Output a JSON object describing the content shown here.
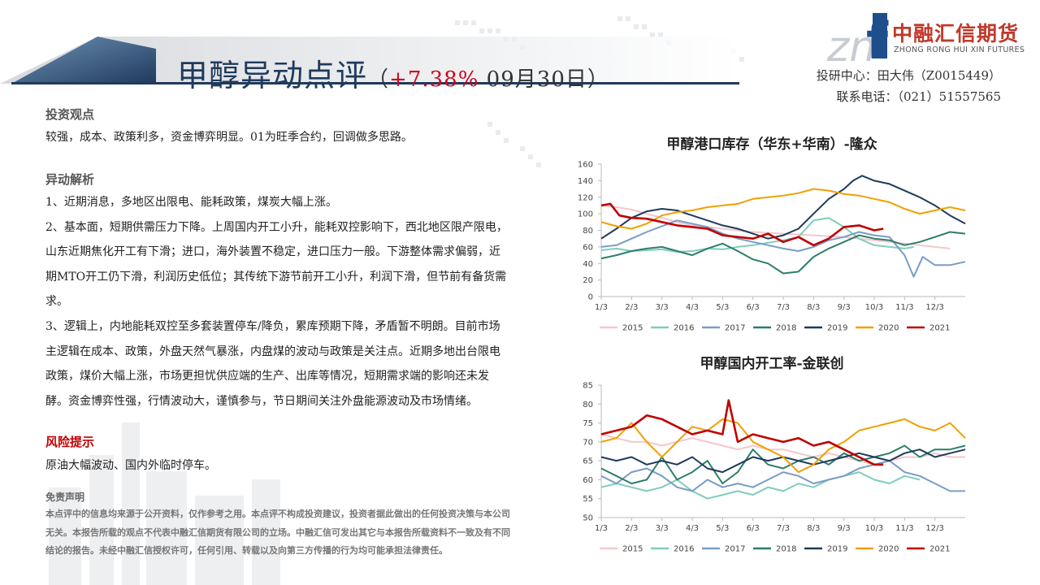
{
  "header": {
    "title": "甲醇异动点评",
    "paren_open": "（",
    "change_pct": "+7.38%",
    "date": " 09月30日",
    "paren_close": "）",
    "contact_center": "投研中心：田大伟（Z0015449）",
    "contact_phone": "联系电话：（021）51557565"
  },
  "logo": {
    "watermark": "zn",
    "letter": "f",
    "cn": "中融汇信期货",
    "en": "ZHONG RONG HUI XIN FUTURES"
  },
  "colors": {
    "title": "#1f3a5c",
    "accent": "#d0021b",
    "logo_blue": "#1f4e8c",
    "logo_red": "#c0392b"
  },
  "sections": {
    "view_heading": "投资观点",
    "view_text": "较强，成本、政策利多，资金博弈明显。01为旺季合约，回调做多思路。",
    "analysis_heading": "异动解析",
    "analysis_text": "1、近期消息，多地区出限电、能耗政策，煤炭大幅上涨。\n2、基本面，短期供需压力下降。上周国内开工小升，能耗双控影响下，西北地区限产限电，山东近期焦化开工有下滑；进口，海外装置不稳定，进口压力一般。下游整体需求偏弱，近期MTO开工仍下滑，利润历史低位；其传统下游节前开工小升，利润下滑，但节前有备货需求。\n3、逻辑上，内地能耗双控至多套装置停车/降负，累库预期下降，矛盾暂不明朗。目前市场主逻辑在成本、政策，外盘天然气暴涨，内盘煤的波动与政策是关注点。近期多地出台限电政策，煤价大幅上涨，市场更担忧供应端的生产、出库等情况，短期需求端的影响还未发酵。资金博弈性强，行情波动大，谨慎参与，节日期间关注外盘能源波动及市场情绪。",
    "risk_heading": "风险提示",
    "risk_text": "原油大幅波动、国内外临时停车。",
    "disclaimer_heading": "免责声明",
    "disclaimer_text": "本点评中的信息均来源于公开资料，仅作参考之用。本点评不构成投资建议，投资者据此做出的任何投资决策与本公司无关。本报告所载的观点不代表中融汇信期货有限公司的立场。中融汇信可发出其它与本报告所载资料不一致及有不同结论的报告。未经中融汇信授权许可，任何引用、转载以及向第三方传播的行为均可能承担法律责任。"
  },
  "chart_data": [
    {
      "type": "line",
      "title": "甲醇港口库存（华东+华南）-隆众",
      "x_ticks": [
        "1/3",
        "2/3",
        "3/3",
        "4/3",
        "5/3",
        "6/3",
        "7/3",
        "8/3",
        "9/3",
        "10/3",
        "11/3",
        "12/3"
      ],
      "ylim": [
        0,
        160
      ],
      "y_ticks": [
        0,
        20,
        40,
        60,
        80,
        100,
        120,
        140,
        160
      ],
      "grid": false,
      "legend_position": "bottom",
      "series": [
        {
          "name": "2015",
          "color": "#f4c7cc",
          "x": [
            1,
            1.5,
            2,
            2.5,
            3,
            3.5,
            4,
            4.5,
            5,
            5.5,
            6,
            6.5,
            7,
            7.5,
            8,
            8.5,
            9,
            9.5,
            10,
            10.5,
            11,
            11.5,
            12,
            12.5
          ],
          "values": [
            110,
            108,
            105,
            100,
            95,
            90,
            86,
            84,
            82,
            80,
            78,
            77,
            76,
            75,
            74,
            73,
            72,
            70,
            68,
            66,
            64,
            62,
            60,
            58
          ]
        },
        {
          "name": "2016",
          "color": "#7fcdbb",
          "x": [
            1,
            1.5,
            2,
            2.5,
            3,
            3.5,
            4,
            4.5,
            5,
            5.5,
            6,
            6.5,
            7,
            7.5,
            8,
            8.5,
            9,
            9.5,
            10,
            10.5,
            11,
            11.3
          ],
          "values": [
            56,
            58,
            55,
            56,
            57,
            54,
            55,
            58,
            57,
            60,
            62,
            65,
            68,
            72,
            92,
            95,
            84,
            70,
            62,
            60,
            58,
            60
          ]
        },
        {
          "name": "2017",
          "color": "#7a9cc6",
          "x": [
            1,
            1.5,
            2,
            2.5,
            3,
            3.5,
            4,
            4.5,
            5,
            5.5,
            6,
            6.5,
            7,
            7.5,
            8,
            8.5,
            9,
            9.5,
            10,
            10.5,
            11,
            11.3,
            11.6,
            12,
            12.5,
            13
          ],
          "values": [
            60,
            62,
            70,
            78,
            85,
            92,
            88,
            84,
            76,
            70,
            66,
            62,
            58,
            55,
            60,
            68,
            72,
            78,
            74,
            72,
            50,
            24,
            48,
            38,
            38,
            42
          ]
        },
        {
          "name": "2018",
          "color": "#2e7d6b",
          "x": [
            1,
            1.5,
            2,
            2.5,
            3,
            3.5,
            4,
            4.5,
            5,
            5.5,
            6,
            6.5,
            7,
            7.5,
            8,
            8.5,
            9,
            9.5,
            10,
            10.5,
            11,
            11.5,
            12,
            12.5,
            13
          ],
          "values": [
            46,
            50,
            55,
            58,
            60,
            55,
            50,
            58,
            64,
            55,
            45,
            40,
            28,
            30,
            48,
            58,
            66,
            74,
            70,
            68,
            62,
            66,
            72,
            78,
            76
          ]
        },
        {
          "name": "2019",
          "color": "#1f3a5c",
          "x": [
            1,
            1.5,
            2,
            2.5,
            3,
            3.5,
            4,
            4.5,
            5,
            5.5,
            6,
            6.5,
            7,
            7.5,
            8,
            8.5,
            9,
            9.3,
            9.6,
            10,
            10.5,
            11,
            11.5,
            12,
            12.5,
            13
          ],
          "values": [
            70,
            82,
            95,
            103,
            106,
            104,
            98,
            92,
            86,
            82,
            76,
            70,
            74,
            82,
            100,
            118,
            130,
            140,
            146,
            140,
            136,
            128,
            120,
            110,
            98,
            88
          ]
        },
        {
          "name": "2020",
          "color": "#f0a000",
          "x": [
            1,
            1.5,
            2,
            2.5,
            3,
            3.5,
            4,
            4.5,
            5,
            5.5,
            6,
            6.5,
            7,
            7.5,
            8,
            8.5,
            9,
            9.5,
            10,
            10.5,
            11,
            11.5,
            12,
            12.5,
            13
          ],
          "values": [
            90,
            85,
            82,
            88,
            98,
            102,
            104,
            108,
            110,
            112,
            118,
            120,
            122,
            125,
            130,
            128,
            124,
            122,
            118,
            114,
            106,
            100,
            104,
            108,
            104
          ]
        },
        {
          "name": "2021",
          "color": "#c00000",
          "x": [
            1,
            1.3,
            1.6,
            2,
            2.5,
            3,
            3.5,
            4,
            4.5,
            5,
            5.5,
            6,
            6.5,
            7,
            7.5,
            8,
            8.5,
            9,
            9.5,
            10,
            10.3
          ],
          "values": [
            110,
            112,
            98,
            95,
            94,
            90,
            86,
            84,
            82,
            74,
            72,
            70,
            76,
            66,
            72,
            62,
            70,
            84,
            86,
            80,
            82
          ]
        }
      ]
    },
    {
      "type": "line",
      "title": "甲醇国内开工率-金联创",
      "x_ticks": [
        "1/3",
        "2/3",
        "3/3",
        "4/3",
        "5/3",
        "6/3",
        "7/3",
        "8/3",
        "9/3",
        "10/3",
        "11/3",
        "12/3"
      ],
      "ylim": [
        50,
        85
      ],
      "y_ticks": [
        50,
        55,
        60,
        65,
        70,
        75,
        80,
        85
      ],
      "grid": false,
      "legend_position": "bottom",
      "series": [
        {
          "name": "2015",
          "color": "#f4c7cc",
          "x": [
            1,
            1.5,
            2,
            2.5,
            3,
            3.5,
            4,
            4.5,
            5,
            5.5,
            6,
            6.5,
            7,
            7.5,
            8,
            8.5,
            9,
            9.5,
            10,
            10.5,
            11,
            11.5,
            12,
            12.5,
            13
          ],
          "values": [
            72,
            71,
            70,
            70,
            69,
            70,
            71,
            70,
            69,
            68,
            69,
            68,
            68,
            67,
            66,
            67,
            66,
            65,
            64,
            65,
            66,
            66,
            67,
            66,
            66
          ]
        },
        {
          "name": "2016",
          "color": "#7fcdbb",
          "x": [
            1,
            1.5,
            2,
            2.5,
            3,
            3.5,
            4,
            4.5,
            5,
            5.5,
            6,
            6.5,
            7,
            7.5,
            8,
            8.5,
            9,
            9.5,
            10,
            10.5,
            11,
            11.5
          ],
          "values": [
            58,
            59,
            58,
            57,
            58,
            60,
            57,
            55,
            56,
            57,
            56,
            58,
            57,
            59,
            58,
            60,
            61,
            62,
            60,
            59,
            61,
            60
          ]
        },
        {
          "name": "2017",
          "color": "#7a9cc6",
          "x": [
            1,
            1.5,
            2,
            2.5,
            3,
            3.5,
            4,
            4.5,
            5,
            5.5,
            6,
            6.5,
            7,
            7.5,
            8,
            8.5,
            9,
            9.5,
            10,
            10.5,
            11,
            11.5,
            12,
            12.5,
            13
          ],
          "values": [
            61,
            59,
            62,
            63,
            61,
            58,
            57,
            60,
            58,
            59,
            58,
            60,
            62,
            61,
            59,
            60,
            61,
            63,
            64,
            65,
            62,
            61,
            59,
            57,
            57
          ]
        },
        {
          "name": "2018",
          "color": "#2e7d6b",
          "x": [
            1,
            1.5,
            2,
            2.5,
            3,
            3.5,
            4,
            4.5,
            5,
            5.5,
            6,
            6.5,
            7,
            7.5,
            8,
            8.5,
            9,
            9.5,
            10,
            10.5,
            11,
            11.5,
            12,
            12.5,
            13
          ],
          "values": [
            63,
            61,
            59,
            60,
            66,
            60,
            62,
            65,
            59,
            62,
            68,
            64,
            63,
            65,
            66,
            64,
            67,
            65,
            66,
            67,
            69,
            66,
            68,
            68,
            69
          ]
        },
        {
          "name": "2019",
          "color": "#1f3a5c",
          "x": [
            1,
            1.5,
            2,
            2.5,
            3,
            3.5,
            4,
            4.5,
            5,
            5.5,
            6,
            6.5,
            7,
            7.5,
            8,
            8.5,
            9,
            9.5,
            10,
            10.5,
            11,
            11.5,
            12,
            12.5,
            13
          ],
          "values": [
            66,
            65,
            66,
            64,
            65,
            64,
            66,
            63,
            62,
            64,
            66,
            65,
            66,
            65,
            64,
            65,
            66,
            67,
            66,
            65,
            67,
            68,
            66,
            67,
            68
          ]
        },
        {
          "name": "2020",
          "color": "#f0a000",
          "x": [
            1,
            1.5,
            2,
            2.5,
            3,
            3.5,
            4,
            4.5,
            5,
            5.5,
            6,
            6.5,
            7,
            7.5,
            8,
            8.5,
            9,
            9.5,
            10,
            10.5,
            11,
            11.5,
            12,
            12.5,
            13
          ],
          "values": [
            70,
            71,
            75,
            70,
            66,
            70,
            74,
            73,
            76,
            75,
            70,
            68,
            66,
            62,
            64,
            68,
            70,
            73,
            74,
            75,
            76,
            74,
            73,
            75,
            71
          ]
        },
        {
          "name": "2021",
          "color": "#c00000",
          "x": [
            1,
            1.5,
            2,
            2.5,
            3,
            3.5,
            4,
            4.5,
            5,
            5.2,
            5.5,
            6,
            6.5,
            7,
            7.5,
            8,
            8.5,
            9,
            9.5,
            10,
            10.3
          ],
          "values": [
            72,
            73,
            74,
            77,
            76,
            74,
            72,
            73,
            72,
            81,
            70,
            72,
            71,
            70,
            71,
            69,
            70,
            68,
            66,
            64,
            64
          ]
        }
      ]
    }
  ]
}
